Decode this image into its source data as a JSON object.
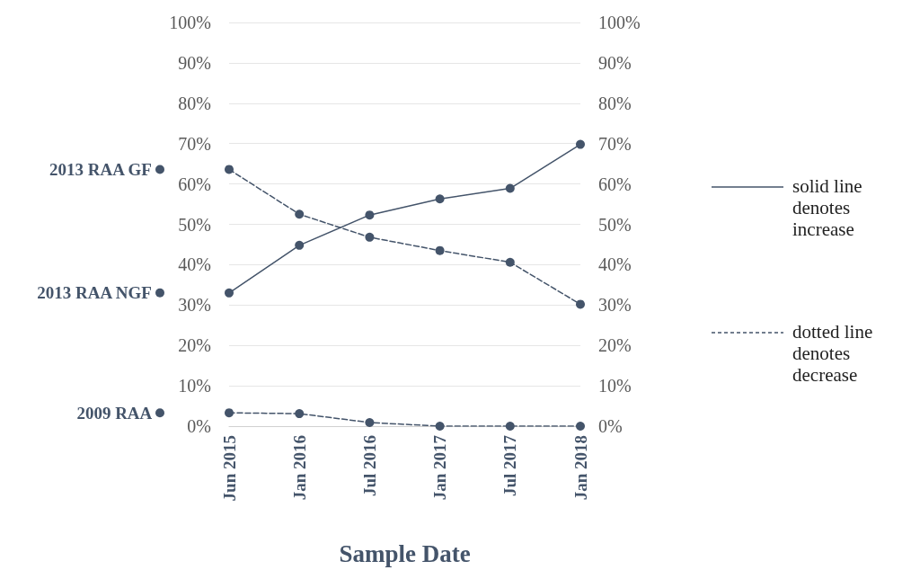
{
  "chart_data": {
    "type": "line",
    "xlabel": "Sample Date",
    "categories": [
      "Jun 2015",
      "Jan 2016",
      "Jul 2016",
      "Jan 2017",
      "Jul 2017",
      "Jan 2018"
    ],
    "series": [
      {
        "name": "2013 RAA NGF",
        "color": "#44546a",
        "line_style": "solid",
        "values": [
          33,
          44.8,
          52.3,
          56.3,
          58.9,
          69.8
        ]
      },
      {
        "name": "2013 RAA GF",
        "color": "#44546a",
        "line_style": "dashed",
        "values": [
          63.6,
          52.5,
          46.8,
          43.5,
          40.6,
          30.2
        ]
      },
      {
        "name": "2009 RAA",
        "color": "#44546a",
        "line_style": "dashed",
        "values": [
          3.3,
          3.1,
          0.9,
          0,
          0,
          0
        ]
      }
    ],
    "ylim": [
      0,
      100
    ],
    "yticks": [
      {
        "value": 0,
        "label": "0%"
      },
      {
        "value": 10,
        "label": "10%"
      },
      {
        "value": 20,
        "label": "20%"
      },
      {
        "value": 30,
        "label": "30%"
      },
      {
        "value": 40,
        "label": "40%"
      },
      {
        "value": 50,
        "label": "50%"
      },
      {
        "value": 60,
        "label": "60%"
      },
      {
        "value": 70,
        "label": "70%"
      },
      {
        "value": 80,
        "label": "80%"
      },
      {
        "value": 90,
        "label": "90%"
      },
      {
        "value": 100,
        "label": "100%"
      }
    ],
    "y2lim": [
      0,
      100
    ],
    "y2ticks": [
      {
        "value": 0,
        "label": "0%"
      },
      {
        "value": 10,
        "label": "10%"
      },
      {
        "value": 20,
        "label": "20%"
      },
      {
        "value": 30,
        "label": "30%"
      },
      {
        "value": 40,
        "label": "40%"
      },
      {
        "value": 50,
        "label": "50%"
      },
      {
        "value": 60,
        "label": "60%"
      },
      {
        "value": 70,
        "label": "70%"
      },
      {
        "value": 80,
        "label": "80%"
      },
      {
        "value": 90,
        "label": "90%"
      },
      {
        "value": 100,
        "label": "100%"
      }
    ],
    "annotations": [
      "solid line denotes increase",
      "dotted line denotes decrease"
    ],
    "grid": "y",
    "marker": "circle",
    "legend": "left"
  }
}
